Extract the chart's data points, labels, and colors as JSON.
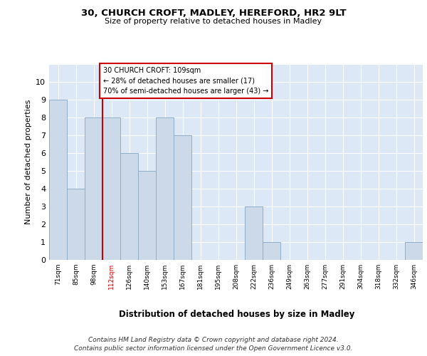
{
  "title1": "30, CHURCH CROFT, MADLEY, HEREFORD, HR2 9LT",
  "title2": "Size of property relative to detached houses in Madley",
  "xlabel": "Distribution of detached houses by size in Madley",
  "ylabel": "Number of detached properties",
  "categories": [
    "71sqm",
    "85sqm",
    "98sqm",
    "112sqm",
    "126sqm",
    "140sqm",
    "153sqm",
    "167sqm",
    "181sqm",
    "195sqm",
    "208sqm",
    "222sqm",
    "236sqm",
    "249sqm",
    "263sqm",
    "277sqm",
    "291sqm",
    "304sqm",
    "318sqm",
    "332sqm",
    "346sqm"
  ],
  "values": [
    9,
    4,
    8,
    8,
    6,
    5,
    8,
    7,
    0,
    0,
    0,
    3,
    1,
    0,
    0,
    0,
    0,
    0,
    0,
    0,
    1
  ],
  "bar_color": "#ccd9e8",
  "bar_edge_color": "#90aec8",
  "property_line_label": "30 CHURCH CROFT: 109sqm",
  "annotation_line1": "← 28% of detached houses are smaller (17)",
  "annotation_line2": "70% of semi-detached houses are larger (43) →",
  "vline_color": "#cc0000",
  "vline_x": 2.5,
  "ylim": [
    0,
    11
  ],
  "yticks": [
    0,
    1,
    2,
    3,
    4,
    5,
    6,
    7,
    8,
    9,
    10,
    11
  ],
  "footer_line1": "Contains HM Land Registry data © Crown copyright and database right 2024.",
  "footer_line2": "Contains public sector information licensed under the Open Government Licence v3.0.",
  "fig_bg_color": "#ffffff",
  "plot_bg_color": "#dce8f5"
}
